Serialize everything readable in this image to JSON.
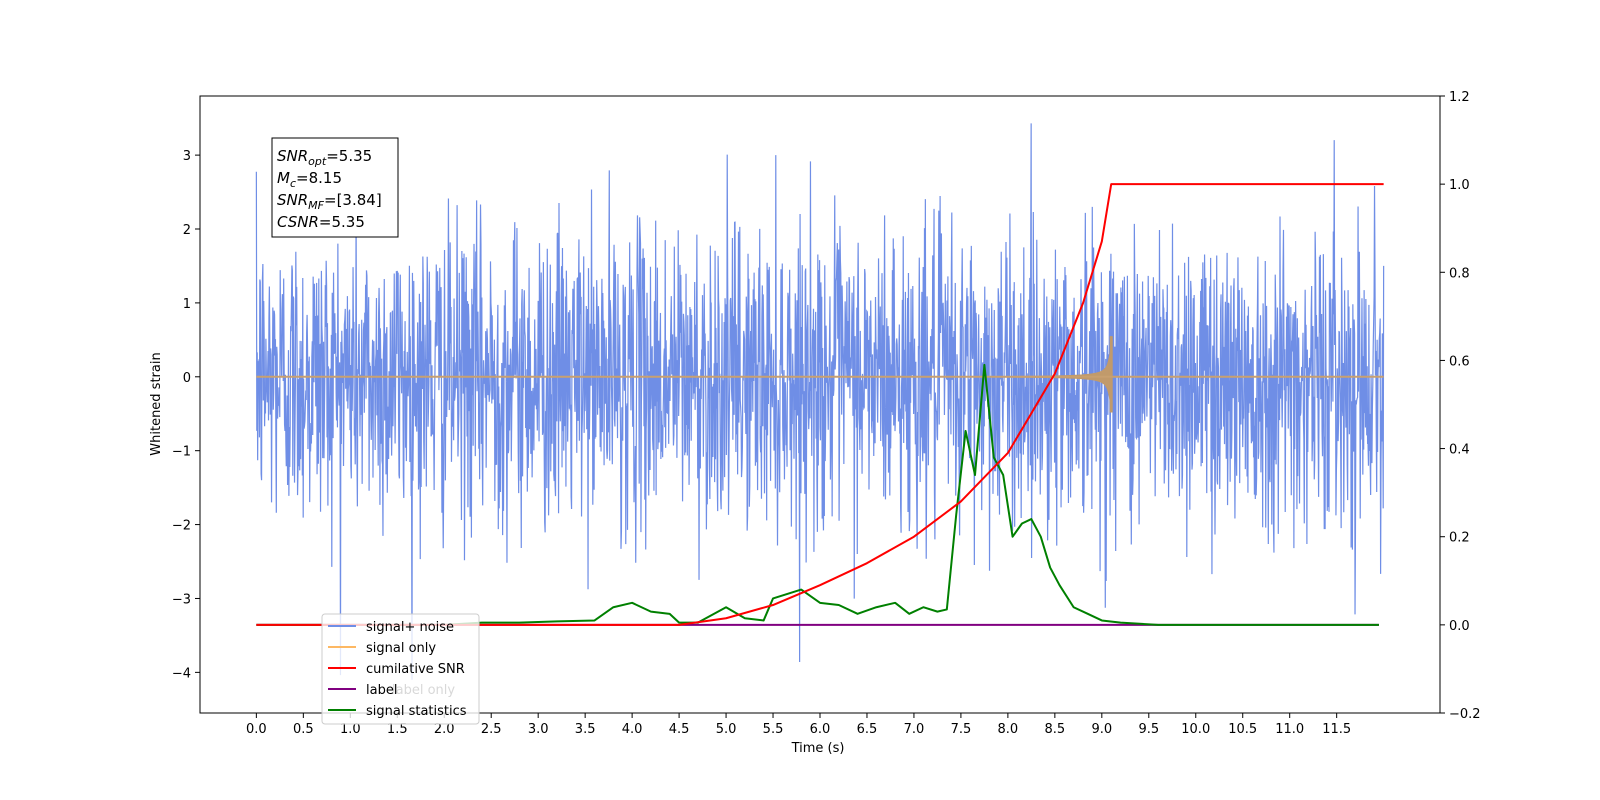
{
  "chart_data": {
    "type": "line",
    "xlabel": "Time (s)",
    "ylabel": "Whitened strain",
    "xlim": [
      -0.6,
      12.6
    ],
    "ylim": [
      -4.55,
      3.8
    ],
    "y2lim": [
      -0.2,
      1.2
    ],
    "xticks": [
      "0.0",
      "0.5",
      "1.0",
      "1.5",
      "2.0",
      "2.5",
      "3.0",
      "3.5",
      "4.0",
      "4.5",
      "5.0",
      "5.5",
      "6.0",
      "6.5",
      "7.0",
      "7.5",
      "8.0",
      "8.5",
      "9.0",
      "9.5",
      "10.0",
      "10.5",
      "11.0",
      "11.5"
    ],
    "yticks": [
      "3",
      "2",
      "1",
      "0",
      "−1",
      "−2",
      "−3",
      "−4"
    ],
    "y2ticks": [
      "1.2",
      "1.0",
      "0.8",
      "0.6",
      "0.4",
      "0.2",
      "0.0",
      "−0.2"
    ],
    "grid": false,
    "legend_position": "lower-left",
    "annotation": {
      "lines": [
        {
          "base": "SNR",
          "sub": "opt",
          "rest": "=5.35"
        },
        {
          "base": "M",
          "sub": "c",
          "rest": "=8.15"
        },
        {
          "base": "SNR",
          "sub": "MF",
          "rest": "=[3.84]"
        },
        {
          "base": "CSNR",
          "sub": "",
          "rest": "=5.35"
        }
      ]
    },
    "series": [
      {
        "name": "signal+ noise",
        "color": "#6f8ee6",
        "axis": "left",
        "kind": "whitened noise band",
        "t_range": [
          0.0,
          12.0
        ],
        "approx_amplitude_sigma": 1.0,
        "extreme_min": -4.1,
        "extreme_max": 3.5
      },
      {
        "name": "signal only",
        "color": "#fdb863",
        "axis": "left",
        "kind": "chirp",
        "t_start": 0.0,
        "t_merger": 9.1,
        "t_end": 12.0,
        "peak_amplitude": 0.55
      },
      {
        "name": "cumilative SNR",
        "color": "#ff0000",
        "axis": "right",
        "x": [
          0.0,
          4.5,
          5.0,
          5.5,
          6.0,
          6.5,
          7.0,
          7.5,
          8.0,
          8.5,
          8.8,
          9.0,
          9.1,
          12.0
        ],
        "y": [
          0.0,
          0.0,
          0.015,
          0.045,
          0.09,
          0.14,
          0.2,
          0.28,
          0.39,
          0.57,
          0.73,
          0.87,
          1.0,
          1.0
        ]
      },
      {
        "name": "label",
        "color": "#800080",
        "axis": "right",
        "x": [
          0.0,
          11.95
        ],
        "y": [
          0.0,
          0.0
        ]
      },
      {
        "name": "signal statistics",
        "color": "#008000",
        "axis": "right",
        "x": [
          0.0,
          2.0,
          2.4,
          2.8,
          3.2,
          3.6,
          3.8,
          4.0,
          4.2,
          4.4,
          4.5,
          4.7,
          5.0,
          5.2,
          5.4,
          5.5,
          5.8,
          6.0,
          6.2,
          6.4,
          6.6,
          6.8,
          6.95,
          7.1,
          7.25,
          7.35,
          7.45,
          7.55,
          7.65,
          7.75,
          7.85,
          7.95,
          8.05,
          8.15,
          8.25,
          8.35,
          8.45,
          8.55,
          8.7,
          8.85,
          9.0,
          9.2,
          9.6,
          10.0,
          11.95
        ],
        "y": [
          0.0,
          0.0,
          0.005,
          0.005,
          0.008,
          0.01,
          0.04,
          0.05,
          0.03,
          0.025,
          0.005,
          0.005,
          0.04,
          0.015,
          0.01,
          0.06,
          0.08,
          0.05,
          0.045,
          0.025,
          0.04,
          0.05,
          0.025,
          0.04,
          0.03,
          0.035,
          0.25,
          0.44,
          0.34,
          0.59,
          0.38,
          0.34,
          0.2,
          0.23,
          0.24,
          0.2,
          0.13,
          0.09,
          0.04,
          0.025,
          0.01,
          0.005,
          0.0,
          0.0,
          0.0
        ]
      }
    ],
    "legend": [
      {
        "label": "signal+ noise",
        "color": "#6f8ee6"
      },
      {
        "label": "signal only",
        "color": "#fdb863"
      },
      {
        "label": "cumilative SNR",
        "color": "#ff0000"
      },
      {
        "label": "label",
        "color": "#800080"
      },
      {
        "label": "signal statistics",
        "color": "#008000"
      }
    ],
    "hidden_legend_text": [
      "label only"
    ]
  }
}
